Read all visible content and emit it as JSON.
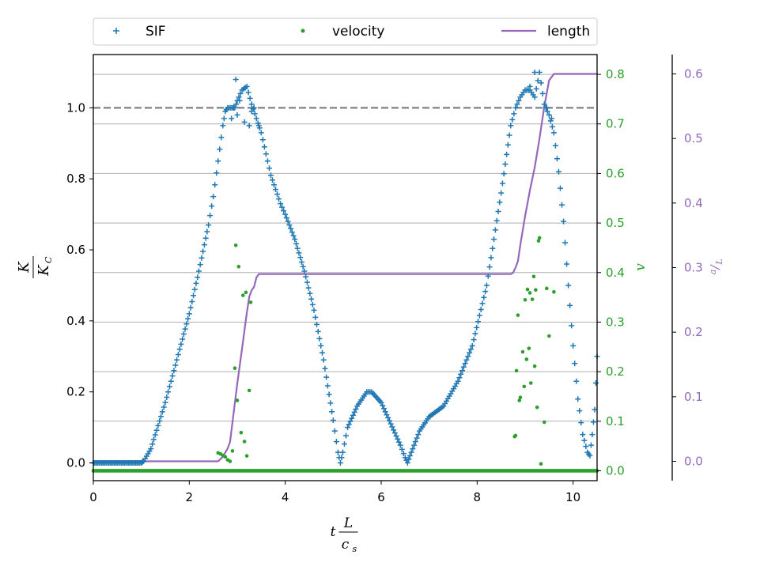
{
  "chart_data": {
    "type": "scatter",
    "xlabel": {
      "var": "t",
      "num": "L",
      "den": "c",
      "den_sub": "s"
    },
    "ylabel_left": {
      "num": "K",
      "den": "K",
      "den_sub": "C"
    },
    "ylabel_right1": "v",
    "ylabel_right2": {
      "num": "a",
      "den": "L"
    },
    "xlim": [
      0,
      10.5
    ],
    "ylim_left": [
      -0.05,
      1.15
    ],
    "ylim_right1": [
      -0.02,
      0.84
    ],
    "ylim_right2": [
      -0.03,
      0.63
    ],
    "x_ticks": [
      "0",
      "2",
      "4",
      "6",
      "8",
      "10"
    ],
    "y_ticks_left": [
      "0.0",
      "0.2",
      "0.4",
      "0.6",
      "0.8",
      "1.0"
    ],
    "y_ticks_right1": [
      "0.0",
      "0.1",
      "0.2",
      "0.3",
      "0.4",
      "0.5",
      "0.6",
      "0.7",
      "0.8"
    ],
    "y_ticks_right2": [
      "0.0",
      "0.1",
      "0.2",
      "0.3",
      "0.4",
      "0.5",
      "0.6"
    ],
    "reference_line_left": 1.0,
    "grid_right1": true,
    "legend": {
      "placement": "top",
      "entries": [
        "SIF",
        "velocity",
        "length"
      ]
    },
    "colors": {
      "sif": "#1f77b4",
      "velocity": "#2ca02c",
      "length": "#9467bd",
      "reference": "#808080",
      "grid": "#b0b0b0"
    },
    "series": [
      {
        "name": "SIF",
        "axis": "left",
        "style": "plus",
        "points": [
          [
            0,
            0
          ],
          [
            0.5,
            0
          ],
          [
            1.0,
            0
          ],
          [
            1.05,
            0.005
          ],
          [
            1.2,
            0.04
          ],
          [
            1.5,
            0.17
          ],
          [
            1.8,
            0.32
          ],
          [
            2.0,
            0.42
          ],
          [
            2.2,
            0.54
          ],
          [
            2.4,
            0.67
          ],
          [
            2.5,
            0.75
          ],
          [
            2.6,
            0.85
          ],
          [
            2.7,
            0.95
          ],
          [
            2.75,
            0.99
          ],
          [
            2.8,
            1.0
          ],
          [
            2.9,
            1.0
          ],
          [
            2.95,
            1.0
          ],
          [
            3.0,
            1.02
          ],
          [
            3.1,
            1.05
          ],
          [
            3.2,
            1.06
          ],
          [
            3.3,
            1.01
          ],
          [
            3.4,
            0.97
          ],
          [
            3.5,
            0.93
          ],
          [
            3.6,
            0.87
          ],
          [
            3.7,
            0.81
          ],
          [
            3.8,
            0.77
          ],
          [
            3.9,
            0.73
          ],
          [
            4.0,
            0.7
          ],
          [
            4.2,
            0.63
          ],
          [
            4.4,
            0.54
          ],
          [
            4.6,
            0.43
          ],
          [
            4.8,
            0.29
          ],
          [
            5.0,
            0.12
          ],
          [
            5.1,
            0.03
          ],
          [
            5.15,
            0.0
          ],
          [
            5.2,
            0.03
          ],
          [
            5.3,
            0.1
          ],
          [
            5.5,
            0.16
          ],
          [
            5.7,
            0.2
          ],
          [
            5.8,
            0.2
          ],
          [
            6.0,
            0.17
          ],
          [
            6.2,
            0.11
          ],
          [
            6.4,
            0.05
          ],
          [
            6.5,
            0.015
          ],
          [
            6.55,
            0.0
          ],
          [
            6.6,
            0.02
          ],
          [
            6.8,
            0.09
          ],
          [
            7.0,
            0.13
          ],
          [
            7.3,
            0.16
          ],
          [
            7.6,
            0.23
          ],
          [
            7.9,
            0.33
          ],
          [
            8.2,
            0.5
          ],
          [
            8.5,
            0.76
          ],
          [
            8.7,
            0.95
          ],
          [
            8.8,
            1.0
          ],
          [
            8.9,
            1.03
          ],
          [
            9.0,
            1.05
          ],
          [
            9.1,
            1.05
          ],
          [
            9.2,
            1.03
          ],
          [
            9.3,
            1.1
          ],
          [
            9.4,
            1.01
          ],
          [
            9.5,
            0.98
          ],
          [
            9.6,
            0.93
          ],
          [
            9.7,
            0.82
          ],
          [
            9.8,
            0.68
          ],
          [
            9.9,
            0.5
          ],
          [
            10.0,
            0.33
          ],
          [
            10.1,
            0.18
          ],
          [
            10.2,
            0.08
          ],
          [
            10.3,
            0.03
          ],
          [
            10.35,
            0.02
          ],
          [
            10.4,
            0.08
          ],
          [
            10.45,
            0.15
          ],
          [
            10.5,
            0.3
          ]
        ],
        "scatter": [
          [
            2.97,
            1.08
          ],
          [
            3.05,
            1.02
          ],
          [
            2.88,
            0.97
          ],
          [
            3.0,
            0.98
          ],
          [
            3.15,
            0.96
          ],
          [
            3.25,
            0.95
          ],
          [
            3.3,
            0.99
          ],
          [
            3.35,
            1.0
          ],
          [
            3.45,
            0.95
          ],
          [
            9.2,
            1.1
          ],
          [
            9.1,
            1.06
          ],
          [
            9.55,
            0.97
          ],
          [
            9.45,
            1.0
          ]
        ]
      },
      {
        "name": "velocity",
        "axis": "right1",
        "style": "dot",
        "base": [
          [
            0,
            0
          ],
          [
            2.55,
            0
          ],
          [
            2.9,
            0
          ],
          [
            3.4,
            0
          ],
          [
            8.75,
            0
          ],
          [
            9.35,
            0
          ],
          [
            10.5,
            0
          ]
        ],
        "scatter": [
          [
            2.6,
            0.036
          ],
          [
            2.65,
            0.034
          ],
          [
            2.7,
            0.031
          ],
          [
            2.75,
            0.028
          ],
          [
            2.8,
            0.022
          ],
          [
            2.85,
            0.019
          ],
          [
            2.9,
            0.04
          ],
          [
            2.95,
            0.207
          ],
          [
            2.97,
            0.455
          ],
          [
            3.0,
            0.142
          ],
          [
            3.03,
            0.412
          ],
          [
            3.08,
            0.077
          ],
          [
            3.12,
            0.354
          ],
          [
            3.15,
            0.059
          ],
          [
            3.18,
            0.36
          ],
          [
            3.2,
            0.03
          ],
          [
            3.25,
            0.162
          ],
          [
            3.28,
            0.34
          ],
          [
            8.78,
            0.069
          ],
          [
            8.8,
            0.071
          ],
          [
            8.82,
            0.202
          ],
          [
            8.85,
            0.314
          ],
          [
            8.88,
            0.142
          ],
          [
            8.9,
            0.148
          ],
          [
            8.95,
            0.24
          ],
          [
            8.98,
            0.17
          ],
          [
            9.0,
            0.345
          ],
          [
            9.03,
            0.225
          ],
          [
            9.05,
            0.366
          ],
          [
            9.08,
            0.247
          ],
          [
            9.1,
            0.359
          ],
          [
            9.12,
            0.177
          ],
          [
            9.15,
            0.346
          ],
          [
            9.18,
            0.392
          ],
          [
            9.2,
            0.211
          ],
          [
            9.22,
            0.365
          ],
          [
            9.25,
            0.128
          ],
          [
            9.28,
            0.464
          ],
          [
            9.3,
            0.47
          ],
          [
            9.33,
            0.014
          ],
          [
            9.4,
            0.098
          ],
          [
            9.45,
            0.368
          ],
          [
            9.5,
            0.272
          ],
          [
            9.6,
            0.361
          ]
        ]
      },
      {
        "name": "length",
        "axis": "right2",
        "style": "line",
        "points": [
          [
            0,
            0
          ],
          [
            2.6,
            0
          ],
          [
            2.7,
            0.007
          ],
          [
            2.8,
            0.02
          ],
          [
            2.85,
            0.03
          ],
          [
            2.9,
            0.06
          ],
          [
            3.0,
            0.12
          ],
          [
            3.1,
            0.175
          ],
          [
            3.2,
            0.23
          ],
          [
            3.25,
            0.255
          ],
          [
            3.3,
            0.265
          ],
          [
            3.35,
            0.27
          ],
          [
            3.4,
            0.285
          ],
          [
            3.45,
            0.29
          ],
          [
            3.5,
            0.29
          ],
          [
            5.0,
            0.29
          ],
          [
            7.0,
            0.29
          ],
          [
            8.7,
            0.29
          ],
          [
            8.75,
            0.292
          ],
          [
            8.8,
            0.3
          ],
          [
            8.85,
            0.31
          ],
          [
            8.9,
            0.335
          ],
          [
            9.0,
            0.38
          ],
          [
            9.1,
            0.42
          ],
          [
            9.2,
            0.455
          ],
          [
            9.3,
            0.5
          ],
          [
            9.4,
            0.55
          ],
          [
            9.5,
            0.59
          ],
          [
            9.6,
            0.6
          ],
          [
            10.5,
            0.6
          ]
        ]
      }
    ]
  }
}
